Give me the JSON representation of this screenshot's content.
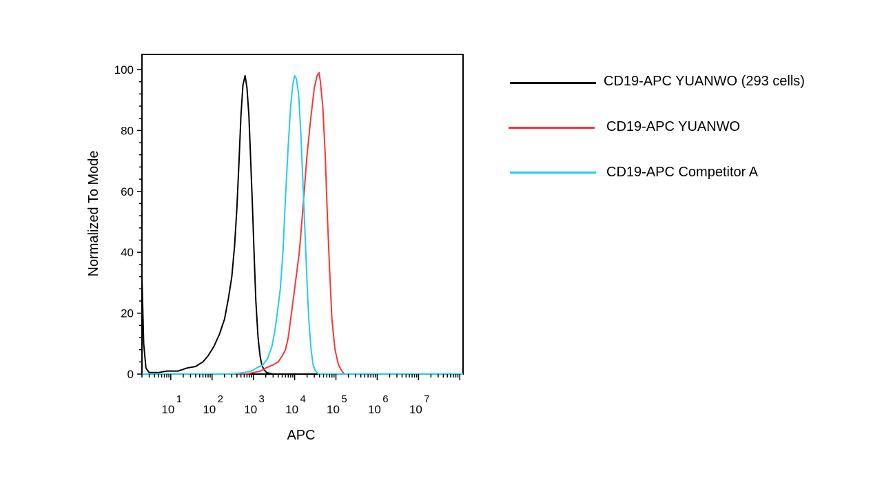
{
  "chart_data": {
    "type": "line",
    "title": "",
    "xlabel": "APC",
    "ylabel": "Normalized To Mode",
    "x_scale": "log",
    "xlim": [
      2,
      120000000
    ],
    "ylim": [
      0,
      105
    ],
    "y_ticks": [
      0,
      20,
      40,
      60,
      80,
      100
    ],
    "x_tick_labels": [
      {
        "base": "10",
        "exp": "1",
        "value": 10
      },
      {
        "base": "10",
        "exp": "2",
        "value": 100
      },
      {
        "base": "10",
        "exp": "3",
        "value": 1000
      },
      {
        "base": "10",
        "exp": "4",
        "value": 10000
      },
      {
        "base": "10",
        "exp": "5",
        "value": 100000
      },
      {
        "base": "10",
        "exp": "6",
        "value": 1000000
      },
      {
        "base": "10",
        "exp": "7",
        "value": 10000000
      }
    ],
    "grid": false,
    "legend_position": "right",
    "series": [
      {
        "name": "CD19-APC YUANWO (293 cells)",
        "color": "#000000",
        "points": [
          [
            2,
            32
          ],
          [
            2.2,
            10
          ],
          [
            2.5,
            2
          ],
          [
            3,
            0.5
          ],
          [
            5,
            0.5
          ],
          [
            8,
            1
          ],
          [
            15,
            1
          ],
          [
            25,
            2
          ],
          [
            40,
            2.5
          ],
          [
            60,
            4
          ],
          [
            80,
            6
          ],
          [
            110,
            9
          ],
          [
            150,
            13
          ],
          [
            200,
            18
          ],
          [
            250,
            25
          ],
          [
            300,
            32
          ],
          [
            350,
            42
          ],
          [
            400,
            55
          ],
          [
            450,
            70
          ],
          [
            500,
            85
          ],
          [
            560,
            95
          ],
          [
            630,
            98
          ],
          [
            700,
            94
          ],
          [
            780,
            85
          ],
          [
            850,
            72
          ],
          [
            950,
            55
          ],
          [
            1050,
            38
          ],
          [
            1150,
            24
          ],
          [
            1300,
            12
          ],
          [
            1450,
            6
          ],
          [
            1600,
            3
          ],
          [
            1800,
            1.5
          ],
          [
            2100,
            0.5
          ],
          [
            3000,
            0
          ],
          [
            120000000,
            0
          ]
        ]
      },
      {
        "name": "CD19-APC YUANWO",
        "color": "#ff3333",
        "points": [
          [
            2,
            0
          ],
          [
            700,
            0
          ],
          [
            1000,
            0.5
          ],
          [
            1500,
            1
          ],
          [
            2000,
            2
          ],
          [
            3000,
            3
          ],
          [
            4000,
            4
          ],
          [
            5000,
            6
          ],
          [
            6000,
            8
          ],
          [
            7000,
            12
          ],
          [
            8000,
            18
          ],
          [
            10000,
            28
          ],
          [
            13000,
            40
          ],
          [
            16000,
            55
          ],
          [
            20000,
            72
          ],
          [
            25000,
            85
          ],
          [
            30000,
            94
          ],
          [
            35000,
            98
          ],
          [
            39000,
            99
          ],
          [
            42000,
            96
          ],
          [
            48000,
            88
          ],
          [
            55000,
            72
          ],
          [
            62000,
            52
          ],
          [
            70000,
            35
          ],
          [
            80000,
            18
          ],
          [
            95000,
            8
          ],
          [
            115000,
            3
          ],
          [
            140000,
            1
          ],
          [
            160000,
            0
          ],
          [
            120000000,
            0
          ]
        ]
      },
      {
        "name": "CD19-APC Competitor A",
        "color": "#22ccee",
        "points": [
          [
            2,
            0
          ],
          [
            300,
            0
          ],
          [
            600,
            0.5
          ],
          [
            900,
            1
          ],
          [
            1200,
            2
          ],
          [
            1700,
            3
          ],
          [
            2200,
            5
          ],
          [
            2800,
            9
          ],
          [
            3300,
            14
          ],
          [
            3800,
            20
          ],
          [
            4500,
            28
          ],
          [
            5200,
            40
          ],
          [
            6000,
            58
          ],
          [
            7000,
            75
          ],
          [
            8000,
            88
          ],
          [
            9000,
            95
          ],
          [
            10000,
            98
          ],
          [
            11000,
            97
          ],
          [
            12500,
            92
          ],
          [
            14000,
            80
          ],
          [
            16000,
            62
          ],
          [
            18000,
            45
          ],
          [
            20000,
            30
          ],
          [
            22000,
            18
          ],
          [
            25000,
            8
          ],
          [
            28000,
            3
          ],
          [
            32000,
            1
          ],
          [
            38000,
            0
          ],
          [
            120000000,
            0
          ]
        ]
      }
    ]
  },
  "legend": [
    {
      "label": "CD19-APC  YUANWO  (293 cells)",
      "color": "#000000"
    },
    {
      "label": "CD19-APC  YUANWO",
      "color": "#ff3333"
    },
    {
      "label": "CD19-APC Competitor A",
      "color": "#22ccee"
    }
  ]
}
